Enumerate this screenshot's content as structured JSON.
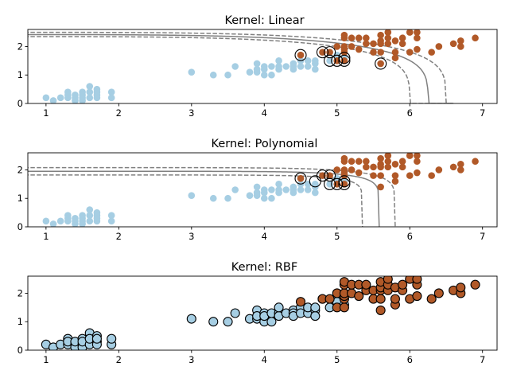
{
  "colors": {
    "class0": "#a6cee3",
    "class1": "#b15928",
    "boundary": "#808080",
    "sv_edge": "#000000"
  },
  "chart_data": [
    {
      "type": "scatter",
      "title": "Kernel: Linear",
      "xlim": [
        0.75,
        7.2
      ],
      "ylim": [
        0,
        2.6
      ],
      "xticks": [
        "1",
        "2",
        "3",
        "4",
        "5",
        "6",
        "7"
      ],
      "yticks": [
        "0",
        "1",
        "2"
      ],
      "series": [
        {
          "points": [
            [
              1.0,
              0.2
            ],
            [
              1.1,
              0.1
            ],
            [
              1.2,
              0.2
            ],
            [
              1.3,
              0.2
            ],
            [
              1.3,
              0.4
            ],
            [
              1.3,
              0.3
            ],
            [
              1.4,
              0.2
            ],
            [
              1.4,
              0.1
            ],
            [
              1.4,
              0.3
            ],
            [
              1.5,
              0.2
            ],
            [
              1.5,
              0.4
            ],
            [
              1.5,
              0.1
            ],
            [
              1.5,
              0.3
            ],
            [
              1.6,
              0.2
            ],
            [
              1.6,
              0.6
            ],
            [
              1.6,
              0.4
            ],
            [
              1.7,
              0.3
            ],
            [
              1.7,
              0.5
            ],
            [
              1.7,
              0.2
            ],
            [
              1.7,
              0.4
            ],
            [
              1.9,
              0.2
            ],
            [
              1.9,
              0.4
            ],
            [
              3.0,
              1.1
            ],
            [
              3.3,
              1.0
            ],
            [
              3.5,
              1.0
            ],
            [
              3.6,
              1.3
            ],
            [
              3.8,
              1.1
            ],
            [
              3.9,
              1.1
            ],
            [
              3.9,
              1.4
            ],
            [
              3.9,
              1.2
            ],
            [
              4.0,
              1.0
            ],
            [
              4.0,
              1.3
            ],
            [
              4.0,
              1.2
            ],
            [
              4.1,
              1.0
            ],
            [
              4.1,
              1.3
            ],
            [
              4.2,
              1.3
            ],
            [
              4.2,
              1.2
            ],
            [
              4.2,
              1.5
            ],
            [
              4.3,
              1.3
            ],
            [
              4.4,
              1.4
            ],
            [
              4.4,
              1.3
            ],
            [
              4.4,
              1.2
            ],
            [
              4.5,
              1.5
            ],
            [
              4.5,
              1.3
            ],
            [
              4.6,
              1.3
            ],
            [
              4.6,
              1.5
            ],
            [
              4.7,
              1.4
            ],
            [
              4.7,
              1.2
            ],
            [
              4.7,
              1.5
            ],
            [
              4.8,
              1.8
            ],
            [
              4.9,
              1.5
            ],
            [
              5.0,
              1.7
            ],
            [
              5.1,
              1.6
            ]
          ]
        },
        {
          "points": [
            [
              4.5,
              1.7
            ],
            [
              4.8,
              1.8
            ],
            [
              4.9,
              1.8
            ],
            [
              5.0,
              1.5
            ],
            [
              5.0,
              2.0
            ],
            [
              5.1,
              1.5
            ],
            [
              5.1,
              1.8
            ],
            [
              5.1,
              1.9
            ],
            [
              5.1,
              2.0
            ],
            [
              5.1,
              2.3
            ],
            [
              5.1,
              2.4
            ],
            [
              5.2,
              2.0
            ],
            [
              5.2,
              2.3
            ],
            [
              5.3,
              1.9
            ],
            [
              5.3,
              2.3
            ],
            [
              5.4,
              2.1
            ],
            [
              5.4,
              2.3
            ],
            [
              5.5,
              1.8
            ],
            [
              5.5,
              2.1
            ],
            [
              5.6,
              1.4
            ],
            [
              5.6,
              1.8
            ],
            [
              5.6,
              2.1
            ],
            [
              5.6,
              2.2
            ],
            [
              5.6,
              2.4
            ],
            [
              5.7,
              2.1
            ],
            [
              5.7,
              2.3
            ],
            [
              5.7,
              2.5
            ],
            [
              5.8,
              1.6
            ],
            [
              5.8,
              1.8
            ],
            [
              5.8,
              2.2
            ],
            [
              5.9,
              2.1
            ],
            [
              5.9,
              2.3
            ],
            [
              6.0,
              1.8
            ],
            [
              6.0,
              2.5
            ],
            [
              6.1,
              1.9
            ],
            [
              6.1,
              2.3
            ],
            [
              6.1,
              2.5
            ],
            [
              6.3,
              1.8
            ],
            [
              6.4,
              2.0
            ],
            [
              6.6,
              2.1
            ],
            [
              6.7,
              2.0
            ],
            [
              6.7,
              2.2
            ],
            [
              6.9,
              2.3
            ]
          ]
        }
      ],
      "support_vectors": [
        [
          4.5,
          1.7
        ],
        [
          4.8,
          1.8
        ],
        [
          4.9,
          1.8
        ],
        [
          5.1,
          1.5
        ],
        [
          5.0,
          1.5
        ],
        [
          5.1,
          1.6
        ],
        [
          5.6,
          1.4
        ],
        [
          4.9,
          1.5
        ]
      ],
      "boundary": "linear"
    },
    {
      "type": "scatter",
      "title": "Kernel: Polynomial",
      "xlim": [
        0.75,
        7.2
      ],
      "ylim": [
        0,
        2.6
      ],
      "xticks": [
        "1",
        "2",
        "3",
        "4",
        "5",
        "6",
        "7"
      ],
      "yticks": [
        "0",
        "1",
        "2"
      ],
      "support_vectors": [
        [
          4.5,
          1.7
        ],
        [
          4.8,
          1.8
        ],
        [
          4.9,
          1.8
        ],
        [
          4.9,
          1.5
        ],
        [
          5.0,
          1.5
        ],
        [
          5.1,
          1.5
        ],
        [
          5.1,
          1.6
        ],
        [
          4.7,
          1.6
        ]
      ],
      "boundary": "polynomial"
    },
    {
      "type": "scatter",
      "title": "Kernel: RBF",
      "xlim": [
        0.75,
        7.2
      ],
      "ylim": [
        0,
        2.6
      ],
      "xticks": [
        "1",
        "2",
        "3",
        "4",
        "5",
        "6",
        "7"
      ],
      "yticks": [
        "0",
        "1",
        "2"
      ],
      "support_vectors": "all",
      "boundary": "none"
    }
  ]
}
